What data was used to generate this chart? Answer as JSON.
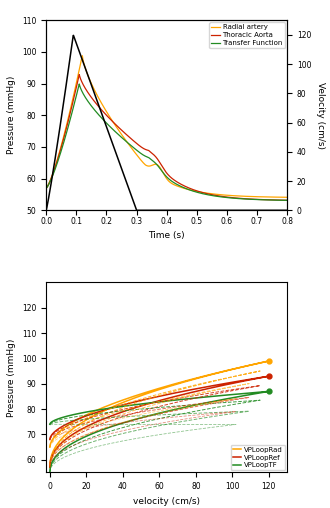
{
  "top_panel": {
    "xlabel": "Time (s)",
    "ylabel_left": "Pressure (mmHg)",
    "ylabel_right": "Velocity (cm/s)",
    "xlim": [
      0.0,
      0.8
    ],
    "ylim_left": [
      50,
      110
    ],
    "ylim_right": [
      0,
      130
    ],
    "xticks": [
      0.0,
      0.1,
      0.2,
      0.3,
      0.4,
      0.5,
      0.6,
      0.7,
      0.8
    ],
    "yticks_left": [
      50,
      60,
      70,
      80,
      90,
      100,
      110
    ],
    "yticks_right": [
      0,
      20,
      40,
      60,
      80,
      100,
      120
    ],
    "legend_labels": [
      "Radial artery",
      "Thoracic Aorta",
      "Transfer Function"
    ],
    "legend_colors": [
      "#FFA500",
      "#CC2200",
      "#228B22"
    ],
    "velocity_color": "#000000"
  },
  "bottom_panel": {
    "xlabel": "velocity (cm/s)",
    "ylabel": "Pressure (mmHg)",
    "xlim": [
      -2,
      130
    ],
    "ylim": [
      55,
      130
    ],
    "xticks": [
      0,
      20,
      40,
      60,
      80,
      100,
      120
    ],
    "yticks": [
      60,
      70,
      80,
      90,
      100,
      110,
      120
    ],
    "legend_labels": [
      "VPLoopRad",
      "VPLoopRef",
      "VPLoopTF"
    ],
    "legend_colors": [
      "#FFA500",
      "#CC2200",
      "#228B22"
    ]
  }
}
